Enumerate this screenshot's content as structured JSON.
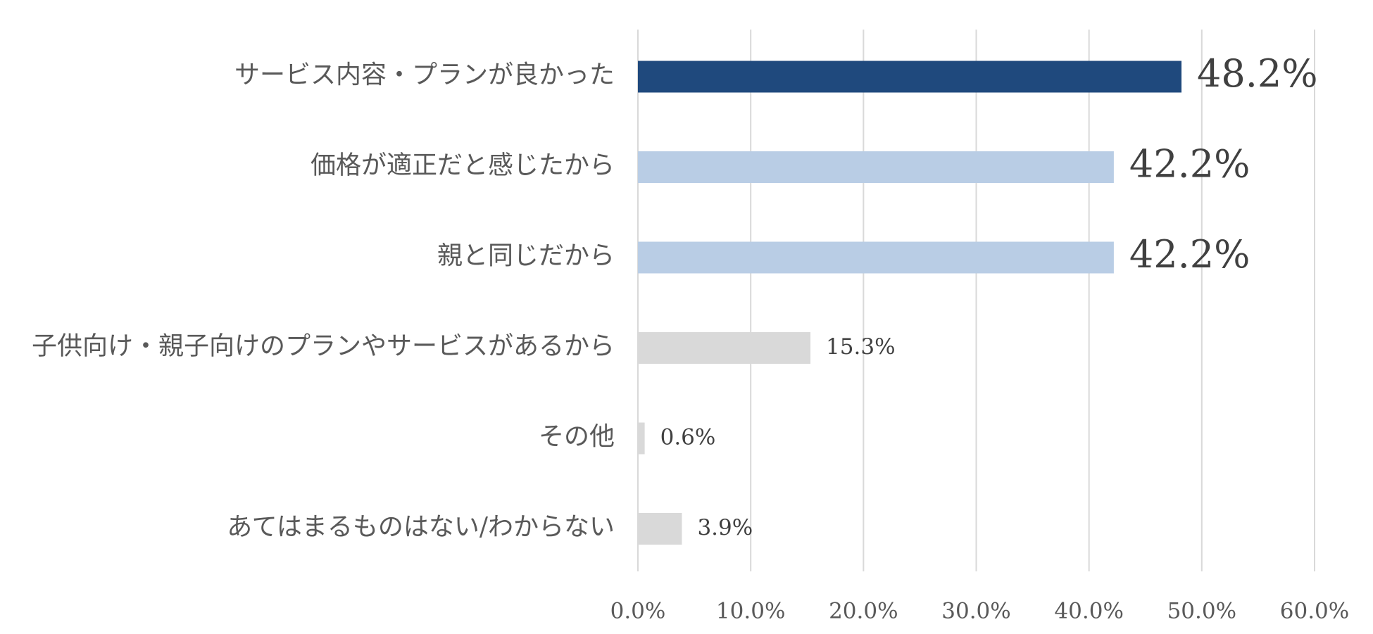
{
  "chart_data": {
    "type": "bar",
    "orientation": "horizontal",
    "categories": [
      "サービス内容・プランが良かった",
      "価格が適正だと感じたから",
      "親と同じだから",
      "子供向け・親子向けのプランやサービスがあるから",
      "その他",
      "あてはまるものはない/わからない"
    ],
    "values": [
      48.2,
      42.2,
      42.2,
      15.3,
      0.6,
      3.9
    ],
    "value_labels": [
      "48.2%",
      "42.2%",
      "42.2%",
      "15.3%",
      "0.6%",
      "3.9%"
    ],
    "bar_colors": [
      "#1f497d",
      "#b9cde5",
      "#b9cde5",
      "#d9d9d9",
      "#d9d9d9",
      "#d9d9d9"
    ],
    "emphasized_labels": [
      true,
      true,
      true,
      false,
      false,
      false
    ],
    "xlim": [
      0,
      60
    ],
    "xticks": [
      0,
      10,
      20,
      30,
      40,
      50,
      60
    ],
    "xtick_labels": [
      "0.0%",
      "10.0%",
      "20.0%",
      "30.0%",
      "40.0%",
      "50.0%",
      "60.0%"
    ],
    "grid": "vertical",
    "grid_color": "#d9d9d9",
    "legend": "none",
    "title": "",
    "xlabel": "",
    "ylabel": ""
  }
}
